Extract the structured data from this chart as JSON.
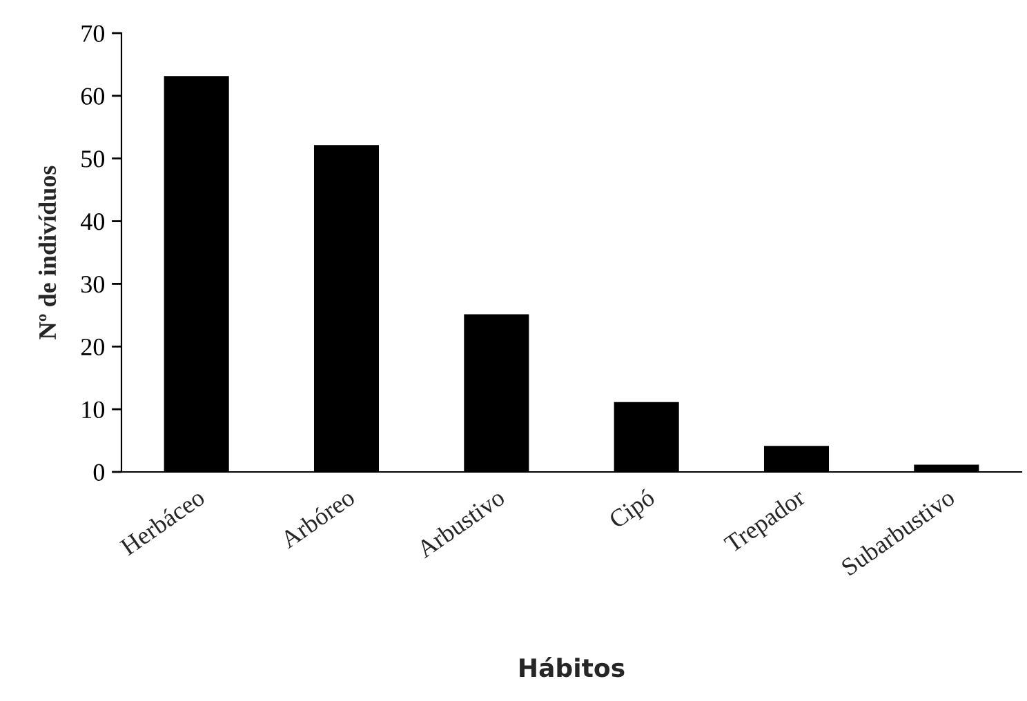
{
  "chart_data": {
    "type": "bar",
    "xlabel": "Hábitos",
    "ylabel": "Nº de indivíduos",
    "categories": [
      "Herbáceo",
      "Arbóreo",
      "Arbustivo",
      "Cipó",
      "Trepador",
      "Subarbustivo"
    ],
    "values": [
      63,
      52,
      25,
      11,
      4,
      1
    ],
    "color": "#000000",
    "ylim": [
      0,
      70
    ],
    "yticks": [
      0,
      10,
      20,
      30,
      40,
      50,
      60,
      70
    ],
    "grid": false,
    "legend": false
  }
}
